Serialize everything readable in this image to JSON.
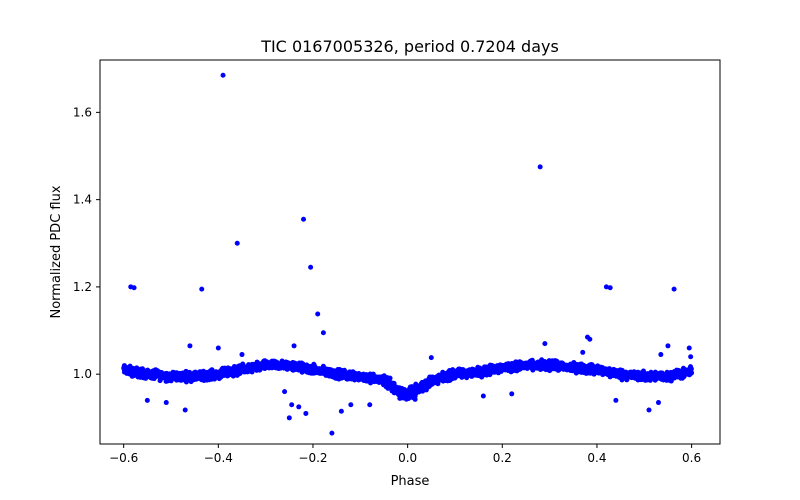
{
  "chart_data": {
    "type": "scatter",
    "title": "TIC 0167005326, period 0.7204 days",
    "xlabel": "Phase",
    "ylabel": "Normalized PDC flux",
    "xlim": [
      -0.65,
      0.66
    ],
    "ylim": [
      0.84,
      1.72
    ],
    "grid": false,
    "marker_color": "#0000ff",
    "x_ticks": [
      -0.6,
      -0.4,
      -0.2,
      0.0,
      0.2,
      0.4,
      0.6
    ],
    "x_tick_labels": [
      "−0.6",
      "−0.4",
      "−0.2",
      "0.0",
      "0.2",
      "0.4",
      "0.6"
    ],
    "y_ticks": [
      1.0,
      1.2,
      1.4,
      1.6
    ],
    "y_tick_labels": [
      "1.0",
      "1.2",
      "1.4",
      "1.6"
    ],
    "baseline_curve": {
      "x": [
        -0.6,
        -0.55,
        -0.5,
        -0.45,
        -0.4,
        -0.35,
        -0.3,
        -0.25,
        -0.2,
        -0.15,
        -0.1,
        -0.05,
        -0.03,
        0.0,
        0.03,
        0.05,
        0.1,
        0.15,
        0.2,
        0.25,
        0.3,
        0.35,
        0.4,
        0.45,
        0.5,
        0.55,
        0.6
      ],
      "y": [
        1.01,
        1.0,
        0.995,
        0.995,
        1.0,
        1.01,
        1.02,
        1.02,
        1.01,
        1.0,
        0.995,
        0.985,
        0.97,
        0.95,
        0.97,
        0.985,
        1.0,
        1.005,
        1.015,
        1.02,
        1.02,
        1.015,
        1.01,
        1.0,
        0.995,
        0.995,
        1.005
      ]
    },
    "outliers": {
      "x": [
        -0.39,
        -0.585,
        -0.578,
        -0.36,
        -0.435,
        -0.22,
        -0.205,
        0.28,
        0.42,
        0.428,
        0.563,
        -0.19,
        -0.178,
        -0.16,
        0.38,
        0.385,
        0.315,
        -0.25,
        -0.245,
        -0.23,
        -0.215,
        -0.14,
        -0.12,
        -0.47,
        -0.51,
        -0.55,
        0.29,
        0.55,
        0.595,
        0.598,
        0.44,
        0.51,
        0.53,
        -0.46,
        -0.4,
        -0.35,
        -0.24,
        0.05,
        -0.08,
        -0.26,
        0.37,
        0.16,
        0.22,
        0.535
      ],
      "y": [
        1.685,
        1.2,
        1.198,
        1.3,
        1.195,
        1.355,
        1.245,
        1.475,
        1.2,
        1.198,
        1.195,
        1.138,
        1.095,
        0.865,
        1.085,
        1.08,
        1.03,
        0.9,
        0.93,
        0.925,
        0.91,
        0.915,
        0.93,
        0.918,
        0.935,
        0.94,
        1.07,
        1.065,
        1.06,
        1.04,
        0.94,
        0.918,
        0.935,
        1.065,
        1.06,
        1.045,
        1.065,
        1.038,
        0.93,
        0.96,
        1.05,
        0.95,
        0.955,
        1.045
      ]
    }
  }
}
